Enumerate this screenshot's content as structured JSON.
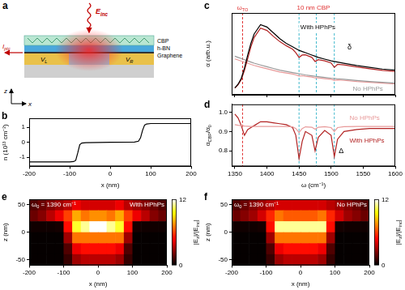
{
  "diagram": {
    "letter": "a",
    "labels": {
      "field": [
        "E",
        {
          "sub": "inc"
        }
      ],
      "cbp": "CBP",
      "hbn": "h-BN",
      "graphene": "Graphene",
      "left_electrode": [
        "V",
        {
          "sub": "L"
        }
      ],
      "right_electrode": [
        "V",
        {
          "sub": "R"
        }
      ],
      "current": [
        "I",
        {
          "sub": "ptc"
        }
      ],
      "axis_z": "z",
      "axis_x": "x"
    }
  },
  "chart_data": [
    {
      "letter": "b",
      "type": "line",
      "x_label": "x (nm)",
      "y_label": "n (10¹³ cm⁻²)",
      "xlim": [
        -200,
        200
      ],
      "xticks": [
        -200,
        -100,
        0,
        100,
        200
      ],
      "ylim": [
        -1.6,
        1.6
      ],
      "yticks": [
        -1,
        0,
        1
      ],
      "x": [
        -200,
        -100,
        -90,
        -85,
        -80,
        -75,
        -70,
        -60,
        0,
        60,
        70,
        75,
        80,
        85,
        90,
        100,
        200
      ],
      "series": [
        {
          "color": "#000000",
          "values": [
            -1.3,
            -1.3,
            -1.28,
            -1.2,
            -0.7,
            -0.15,
            -0.05,
            -0.02,
            0,
            0.02,
            0.08,
            0.3,
            0.8,
            1.15,
            1.22,
            1.25,
            1.25
          ]
        }
      ]
    },
    {
      "letter": "c",
      "type": "line",
      "y_label": "α (arb.u.)",
      "tick_labels": false,
      "xlim": [
        1345,
        1600
      ],
      "xticks": [
        1350,
        1400,
        1450,
        1500,
        1550,
        1600
      ],
      "ylim": [
        0,
        7
      ],
      "x": [
        1350,
        1355,
        1360,
        1365,
        1370,
        1375,
        1380,
        1390,
        1400,
        1410,
        1420,
        1430,
        1440,
        1445,
        1450,
        1455,
        1460,
        1470,
        1475,
        1480,
        1490,
        1500,
        1505,
        1510,
        1520,
        1540,
        1560,
        1580,
        1600
      ],
      "series": [
        {
          "name": "With HPhPs",
          "color": "#000000",
          "values": [
            0.6,
            0.9,
            1.4,
            2.3,
            3.4,
            4.4,
            5.2,
            6.0,
            5.8,
            5.3,
            4.8,
            4.4,
            4.1,
            3.95,
            3.8,
            3.7,
            3.6,
            3.4,
            3.3,
            3.2,
            3.05,
            2.9,
            2.85,
            2.8,
            2.7,
            2.5,
            2.35,
            2.2,
            2.1
          ]
        },
        {
          "color": "#b22222",
          "values": [
            0.57,
            0.86,
            1.3,
            2.1,
            3.1,
            4.1,
            4.9,
            5.7,
            5.5,
            5.0,
            4.55,
            4.2,
            3.9,
            3.6,
            3.2,
            3.4,
            3.42,
            3.2,
            2.85,
            3.0,
            2.9,
            2.72,
            2.35,
            2.6,
            2.56,
            2.38,
            2.23,
            2.09,
            2.0
          ]
        },
        {
          "name": "No HPhPs",
          "color": "#999999",
          "values": [
            3.3,
            3.2,
            3.1,
            3.0,
            2.9,
            2.8,
            2.7,
            2.55,
            2.4,
            2.25,
            2.1,
            2.0,
            1.9,
            1.85,
            1.8,
            1.75,
            1.7,
            1.62,
            1.58,
            1.55,
            1.48,
            1.42,
            1.4,
            1.37,
            1.32,
            1.22,
            1.14,
            1.06,
            1.0
          ]
        },
        {
          "color": "#e89a9a",
          "values": [
            3.07,
            2.98,
            2.88,
            2.79,
            2.7,
            2.6,
            2.51,
            2.37,
            2.23,
            2.09,
            1.95,
            1.86,
            1.77,
            1.7,
            1.6,
            1.63,
            1.58,
            1.51,
            1.44,
            1.44,
            1.38,
            1.32,
            1.24,
            1.27,
            1.23,
            1.13,
            1.06,
            0.99,
            0.93
          ]
        }
      ],
      "vlines": [
        {
          "x": 1362,
          "color": "#e03030",
          "label": [
            "ω",
            {
              "sub": "TO"
            }
          ]
        },
        {
          "x": 1450,
          "color": "#3fb8cc"
        },
        {
          "x": 1477,
          "color": "#3fb8cc"
        },
        {
          "x": 1505,
          "color": "#3fb8cc"
        }
      ],
      "annotations": [
        {
          "text": "10 nm CBP",
          "color": "#e03030"
        },
        {
          "text": "δ"
        }
      ]
    },
    {
      "letter": "d",
      "type": "line",
      "x_label": "ω (cm⁻¹)",
      "y_label": [
        "α",
        {
          "sub": "CBP"
        },
        "/α",
        {
          "sub": "0"
        }
      ],
      "xlim": [
        1345,
        1600
      ],
      "xticks": [
        1350,
        1400,
        1450,
        1500,
        1550,
        1600
      ],
      "ylim": [
        0.72,
        1.04
      ],
      "yticks": [
        0.8,
        0.9,
        {
          "value": 1,
          "label": "1.0"
        }
      ],
      "x": [
        1350,
        1355,
        1360,
        1365,
        1370,
        1375,
        1380,
        1390,
        1400,
        1410,
        1420,
        1430,
        1440,
        1445,
        1450,
        1455,
        1460,
        1470,
        1475,
        1480,
        1490,
        1500,
        1505,
        1510,
        1520,
        1540,
        1560,
        1580,
        1600
      ],
      "series": [
        {
          "name": "No HPhPs",
          "color": "#e89a9a",
          "values": [
            0.935,
            0.932,
            0.93,
            0.928,
            0.927,
            0.926,
            0.926,
            0.926,
            0.926,
            0.926,
            0.926,
            0.926,
            0.924,
            0.915,
            0.895,
            0.915,
            0.924,
            0.922,
            0.912,
            0.922,
            0.925,
            0.92,
            0.9,
            0.92,
            0.925,
            0.926,
            0.926,
            0.926,
            0.926
          ]
        },
        {
          "name": "With HPhPs",
          "color": "#b22222",
          "values": [
            0.99,
            0.97,
            0.93,
            0.88,
            0.91,
            0.92,
            0.93,
            0.95,
            0.95,
            0.945,
            0.94,
            0.935,
            0.92,
            0.88,
            0.76,
            0.85,
            0.9,
            0.88,
            0.8,
            0.87,
            0.905,
            0.88,
            0.77,
            0.86,
            0.9,
            0.91,
            0.915,
            0.915,
            0.915
          ]
        }
      ],
      "vlines": [
        {
          "x": 1362,
          "color": "#e03030"
        },
        {
          "x": 1450,
          "color": "#3fb8cc"
        },
        {
          "x": 1477,
          "color": "#3fb8cc"
        },
        {
          "x": 1505,
          "color": "#3fb8cc"
        }
      ],
      "annotations": [
        {
          "text": "Δ"
        }
      ]
    },
    {
      "letter": "e",
      "type": "heatmap",
      "title": "With HPhPs",
      "subtitle": [
        "ω",
        {
          "sub": "0"
        },
        " = 1390 cm⁻¹"
      ],
      "x_label": "x (nm)",
      "y_label": "z (nm)",
      "xlim": [
        -200,
        200
      ],
      "xticks": [
        -200,
        -100,
        0,
        100,
        200
      ],
      "ylim": [
        -60,
        60
      ],
      "yticks": [
        -50,
        0,
        50
      ],
      "x": [
        -187.5,
        -162.5,
        -137.5,
        -112.5,
        -87.5,
        -62.5,
        -37.5,
        -12.5,
        12.5,
        37.5,
        62.5,
        87.5,
        112.5,
        137.5,
        162.5,
        187.5
      ],
      "z": [
        50,
        30,
        10,
        -10,
        -30,
        -50
      ],
      "cells": [
        [
          1.5,
          2,
          2.5,
          3,
          3.5,
          4.5,
          4,
          4,
          4,
          4,
          4.5,
          3.5,
          3,
          2.5,
          2,
          1.5
        ],
        [
          2,
          2.5,
          3.5,
          4.5,
          6,
          8,
          7,
          7.5,
          7.5,
          7,
          8,
          6,
          4.5,
          3.5,
          2.5,
          2
        ],
        [
          0.3,
          0.3,
          0.3,
          0.4,
          5,
          10,
          11,
          12,
          12,
          11,
          10,
          5,
          0.4,
          0.3,
          0.3,
          0.3
        ],
        [
          0.1,
          0.1,
          0.1,
          0.1,
          3,
          7,
          7,
          7,
          7,
          7,
          7,
          3,
          0.1,
          0.1,
          0.1,
          0.1
        ],
        [
          0.1,
          0.1,
          0.1,
          0.1,
          1.5,
          4.5,
          5,
          5,
          5,
          5,
          4.5,
          1.5,
          0.1,
          0.1,
          0.1,
          0.1
        ],
        [
          0.1,
          0.1,
          0.1,
          0.1,
          1,
          3,
          3.5,
          3.5,
          3.5,
          3.5,
          3,
          1,
          0.1,
          0.1,
          0.1,
          0.1
        ]
      ],
      "colorbar": {
        "label": [
          "|E",
          {
            "sub": "z"
          },
          "|/|E",
          {
            "sub": "inc"
          },
          "|"
        ],
        "range": [
          0,
          12
        ],
        "ticks": [
          0,
          12
        ]
      }
    },
    {
      "letter": "f",
      "type": "heatmap",
      "title": "No HPhPs",
      "subtitle": [
        "ω",
        {
          "sub": "0"
        },
        " = 1390 cm⁻¹"
      ],
      "x_label": "x (nm)",
      "y_label": "z (nm)",
      "xlim": [
        -200,
        200
      ],
      "xticks": [
        -200,
        -100,
        0,
        100,
        200
      ],
      "ylim": [
        -60,
        60
      ],
      "yticks": [
        -50,
        0,
        50
      ],
      "x": [
        -187.5,
        -162.5,
        -137.5,
        -112.5,
        -87.5,
        -62.5,
        -37.5,
        -12.5,
        12.5,
        37.5,
        62.5,
        87.5,
        112.5,
        137.5,
        162.5,
        187.5
      ],
      "z": [
        50,
        30,
        10,
        -10,
        -30,
        -50
      ],
      "cells": [
        [
          1.5,
          2,
          2.5,
          3,
          3.5,
          4,
          4,
          4,
          4,
          4,
          4,
          3.5,
          3,
          2.5,
          2,
          1.5
        ],
        [
          2,
          2.5,
          3,
          4,
          5.5,
          7,
          6.5,
          6.5,
          6.5,
          6.5,
          7,
          5.5,
          4,
          3,
          2.5,
          2
        ],
        [
          0.3,
          0.3,
          0.3,
          0.4,
          5,
          11,
          11,
          11,
          11,
          11,
          11,
          5,
          0.4,
          0.3,
          0.3,
          0.3
        ],
        [
          0.1,
          0.1,
          0.1,
          0.1,
          3,
          7,
          7,
          7,
          7,
          7,
          7,
          3,
          0.1,
          0.1,
          0.1,
          0.1
        ],
        [
          0.1,
          0.1,
          0.1,
          0.1,
          1.5,
          4.5,
          5,
          5,
          5,
          5,
          4.5,
          1.5,
          0.1,
          0.1,
          0.1,
          0.1
        ],
        [
          0.1,
          0.1,
          0.1,
          0.1,
          1,
          3,
          3.5,
          3.5,
          3.5,
          3.5,
          3,
          1,
          0.1,
          0.1,
          0.1,
          0.1
        ]
      ],
      "colorbar": {
        "label": [
          "|E",
          {
            "sub": "z"
          },
          "|/|E",
          {
            "sub": "inc"
          },
          "|"
        ],
        "range": [
          0,
          12
        ],
        "ticks": [
          0,
          12
        ]
      }
    }
  ]
}
